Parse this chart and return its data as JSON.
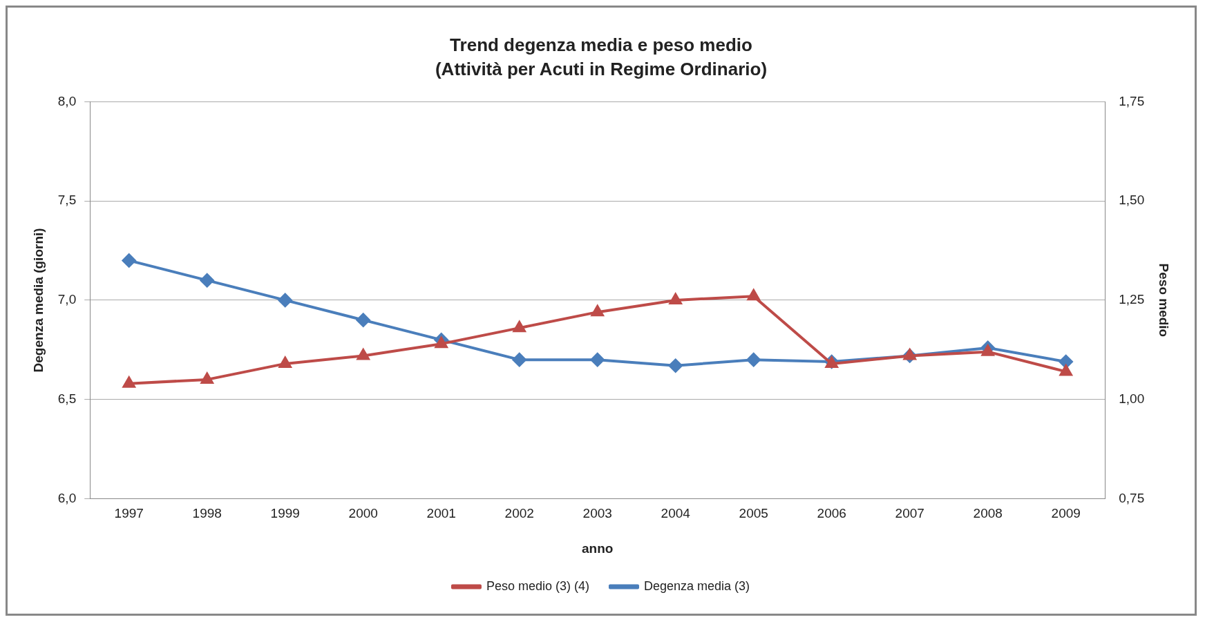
{
  "chart_data": {
    "type": "line",
    "title": "Trend degenza media e peso medio",
    "subtitle": "(Attività per Acuti in Regime Ordinario)",
    "xlabel": "anno",
    "ylabel": "Degenza media (giorni)",
    "y2label": "Peso medio",
    "categories": [
      "1997",
      "1998",
      "1999",
      "2000",
      "2001",
      "2002",
      "2003",
      "2004",
      "2005",
      "2006",
      "2007",
      "2008",
      "2009"
    ],
    "series": [
      {
        "name": "Degenza media (3)",
        "color": "#4a7ebb",
        "marker": "diamond",
        "values": [
          7.2,
          7.1,
          7.0,
          6.9,
          6.8,
          6.7,
          6.7,
          6.67,
          6.7,
          6.69,
          6.72,
          6.76,
          6.69
        ]
      },
      {
        "name": "Peso medio (3) (4)",
        "color": "#be4b48",
        "marker": "triangle",
        "axis": "y2",
        "values": [
          1.04,
          1.05,
          1.09,
          1.11,
          1.14,
          1.18,
          1.22,
          1.25,
          1.26,
          1.09,
          1.11,
          1.12,
          1.07
        ]
      }
    ],
    "ylim": [
      6,
      8
    ],
    "yticks": [
      {
        "value": 6,
        "label": "6,0"
      },
      {
        "value": 6.5,
        "label": "6,5"
      },
      {
        "value": 7,
        "label": "7,0"
      },
      {
        "value": 7.5,
        "label": "7,5"
      },
      {
        "value": 8,
        "label": "8,0"
      }
    ],
    "y2lim": [
      0.75,
      1.75
    ],
    "y2ticks": [
      {
        "value": 0.75,
        "label": "0,75"
      },
      {
        "value": 1,
        "label": "1,00"
      },
      {
        "value": 1.25,
        "label": "1,25"
      },
      {
        "value": 1.5,
        "label": "1,50"
      },
      {
        "value": 1.75,
        "label": "1,75"
      }
    ],
    "grid": "y",
    "legend": "bottom",
    "line_style": "solid"
  }
}
